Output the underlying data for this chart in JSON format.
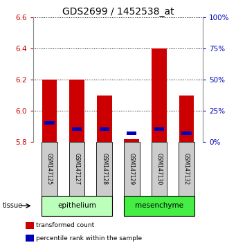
{
  "title": "GDS2699 / 1452538_at",
  "samples": [
    "GSM147125",
    "GSM147127",
    "GSM147128",
    "GSM147129",
    "GSM147130",
    "GSM147132"
  ],
  "red_tops": [
    6.2,
    6.2,
    6.1,
    5.82,
    6.4,
    6.1
  ],
  "blue_vals": [
    5.925,
    5.885,
    5.885,
    5.855,
    5.885,
    5.855
  ],
  "baseline": 5.8,
  "ylim": [
    5.8,
    6.6
  ],
  "yticks_left": [
    5.8,
    6.0,
    6.2,
    6.4,
    6.6
  ],
  "yticks_right": [
    0,
    25,
    50,
    75,
    100
  ],
  "groups": [
    {
      "name": "epithelium",
      "indices": [
        0,
        1,
        2
      ],
      "color": "#bbffbb"
    },
    {
      "name": "mesenchyme",
      "indices": [
        3,
        4,
        5
      ],
      "color": "#44ee44"
    }
  ],
  "tissue_label": "tissue",
  "legend_items": [
    {
      "label": "transformed count",
      "color": "#cc0000"
    },
    {
      "label": "percentile rank within the sample",
      "color": "#0000bb"
    }
  ],
  "bar_color": "#cc0000",
  "blue_color": "#0000bb",
  "left_tick_color": "#cc0000",
  "right_tick_color": "#0000bb",
  "bar_width": 0.55,
  "sample_bg_color": "#cccccc",
  "title_fontsize": 10,
  "tick_fontsize": 7.5,
  "sample_fontsize": 5.5,
  "legend_fontsize": 6.5,
  "group_fontsize": 7.5
}
